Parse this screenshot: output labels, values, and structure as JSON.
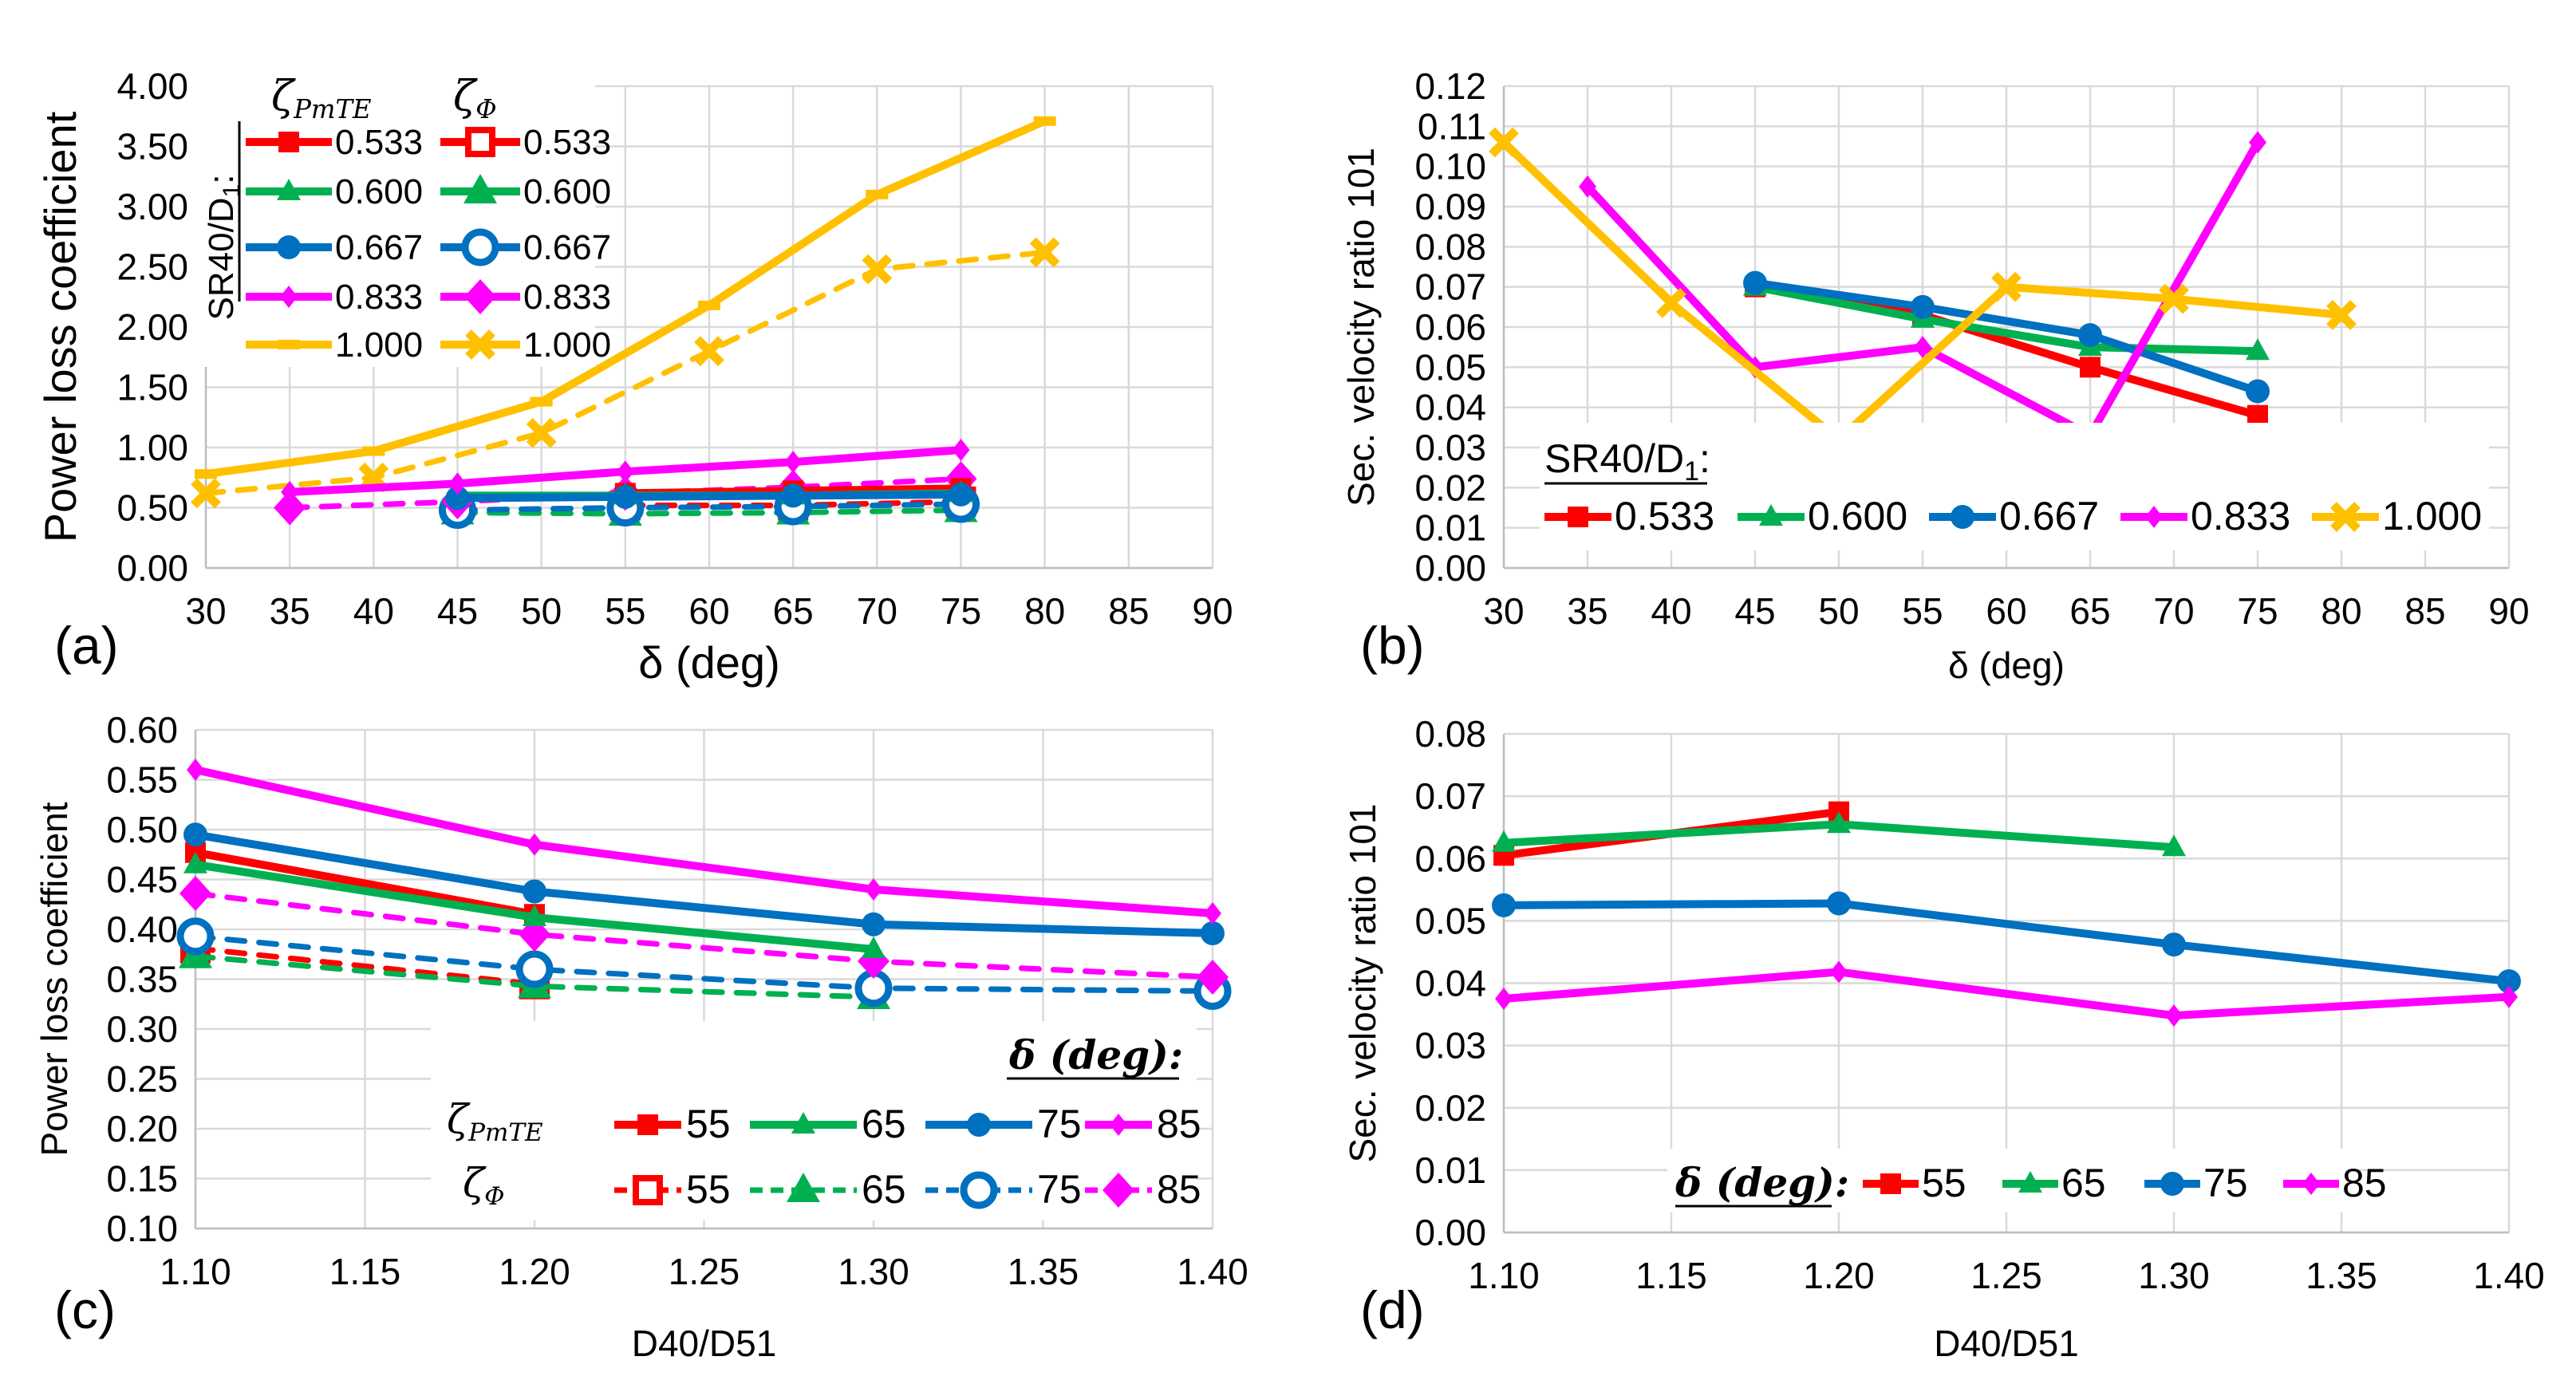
{
  "colors": {
    "s533": "#ff0000",
    "s600": "#00b050",
    "s667": "#0070c0",
    "s833": "#ff00ff",
    "s1000": "#ffc000",
    "d55": "#ff0000",
    "d65": "#00b050",
    "d75": "#0070c0",
    "d85": "#ff00ff"
  },
  "panels": {
    "a": "(a)",
    "b": "(b)",
    "c": "(c)",
    "d": "(d)"
  },
  "legend_a": {
    "title_main": "ζ",
    "title_main_sub": "PmTE",
    "title_dash": "ζ",
    "title_dash_sub": "Φ",
    "group_label": "SR40/D",
    "group_label_sub": "1",
    "group_label_end": ":",
    "entries": [
      "0.533",
      "0.600",
      "0.667",
      "0.833",
      "1.000"
    ]
  },
  "legend_b": {
    "label": "SR40/D",
    "label_sub": "1",
    "label_end": ":",
    "entries": [
      "0.533",
      "0.600",
      "0.667",
      "0.833",
      "1.000"
    ]
  },
  "legend_c": {
    "header": "δ (deg):",
    "row1_label": "ζ",
    "row1_sub": "PmTE",
    "row2_label": "ζ",
    "row2_sub": "Φ",
    "entries": [
      "55",
      "65",
      "75",
      "85"
    ]
  },
  "legend_d": {
    "header": "δ (deg):",
    "entries": [
      "55",
      "65",
      "75",
      "85"
    ]
  },
  "chart_data": [
    {
      "id": "a",
      "type": "line",
      "xlabel": "δ (deg)",
      "ylabel": "Power loss coefficient",
      "xlim": [
        30,
        90
      ],
      "ylim": [
        0,
        4
      ],
      "xticks": [
        "30",
        "35",
        "40",
        "45",
        "50",
        "55",
        "60",
        "65",
        "70",
        "75",
        "80",
        "85",
        "90"
      ],
      "yticks": [
        "0.00",
        "0.50",
        "1.00",
        "1.50",
        "2.00",
        "2.50",
        "3.00",
        "3.50",
        "4.00"
      ],
      "series": [
        {
          "name": "ζPmTE 0.533",
          "style": "solid",
          "color": "s533",
          "marker": "square",
          "x": [
            55,
            65,
            75
          ],
          "y": [
            0.62,
            0.64,
            0.66
          ]
        },
        {
          "name": "ζPmTE 0.600",
          "style": "solid",
          "color": "s600",
          "marker": "triangle",
          "x": [
            45,
            55,
            65,
            75
          ],
          "y": [
            0.6,
            0.6,
            0.6,
            0.62
          ]
        },
        {
          "name": "ζPmTE 0.667",
          "style": "solid",
          "color": "s667",
          "marker": "circle",
          "x": [
            45,
            55,
            65,
            75
          ],
          "y": [
            0.58,
            0.59,
            0.6,
            0.61
          ]
        },
        {
          "name": "ζPmTE 0.833",
          "style": "solid",
          "color": "s833",
          "marker": "diamond-small",
          "x": [
            35,
            45,
            55,
            65,
            75
          ],
          "y": [
            0.63,
            0.7,
            0.8,
            0.88,
            0.98
          ]
        },
        {
          "name": "ζPmTE 1.000",
          "style": "solid",
          "color": "s1000",
          "marker": "dash",
          "x": [
            30,
            40,
            50,
            60,
            70,
            80
          ],
          "y": [
            0.78,
            0.97,
            1.38,
            2.18,
            3.1,
            3.71
          ]
        },
        {
          "name": "ζΦ 0.533",
          "style": "dashed",
          "color": "s533",
          "marker": "open-square",
          "x": [
            55,
            65,
            75
          ],
          "y": [
            0.52,
            0.52,
            0.55
          ]
        },
        {
          "name": "ζΦ 0.600",
          "style": "dashed",
          "color": "s600",
          "marker": "big-triangle",
          "x": [
            45,
            55,
            65,
            75
          ],
          "y": [
            0.46,
            0.45,
            0.46,
            0.48
          ]
        },
        {
          "name": "ζΦ 0.667",
          "style": "dashed",
          "color": "s667",
          "marker": "open-circle",
          "x": [
            45,
            55,
            65,
            75
          ],
          "y": [
            0.48,
            0.5,
            0.51,
            0.53
          ]
        },
        {
          "name": "ζΦ 0.833",
          "style": "dashed",
          "color": "s833",
          "marker": "big-diamond",
          "x": [
            35,
            45,
            55,
            65,
            75
          ],
          "y": [
            0.5,
            0.55,
            0.62,
            0.67,
            0.74
          ]
        },
        {
          "name": "ζΦ 1.000",
          "style": "dashed",
          "color": "s1000",
          "marker": "x",
          "x": [
            30,
            40,
            50,
            60,
            70,
            80
          ],
          "y": [
            0.62,
            0.75,
            1.12,
            1.8,
            2.48,
            2.62
          ]
        }
      ]
    },
    {
      "id": "b",
      "type": "line",
      "xlabel": "δ (deg)",
      "ylabel": "Sec. velocity ratio 101",
      "xlim": [
        30,
        90
      ],
      "ylim": [
        0,
        0.12
      ],
      "xticks": [
        "30",
        "35",
        "40",
        "45",
        "50",
        "55",
        "60",
        "65",
        "70",
        "75",
        "80",
        "85",
        "90"
      ],
      "yticks": [
        "0.00",
        "0.01",
        "0.02",
        "0.03",
        "0.04",
        "0.05",
        "0.06",
        "0.07",
        "0.08",
        "0.09",
        "0.10",
        "0.11",
        "0.12"
      ],
      "series": [
        {
          "name": "0.533",
          "color": "s533",
          "marker": "square",
          "x": [
            45,
            55,
            65,
            75
          ],
          "y": [
            0.07,
            0.063,
            0.05,
            0.038
          ]
        },
        {
          "name": "0.600",
          "color": "s600",
          "marker": "triangle",
          "x": [
            45,
            55,
            65,
            75
          ],
          "y": [
            0.07,
            0.062,
            0.055,
            0.054
          ]
        },
        {
          "name": "0.667",
          "color": "s667",
          "marker": "circle",
          "x": [
            45,
            55,
            65,
            75
          ],
          "y": [
            0.071,
            0.065,
            0.058,
            0.044
          ]
        },
        {
          "name": "0.833",
          "color": "s833",
          "marker": "diamond-small",
          "x": [
            35,
            45,
            55,
            65,
            75
          ],
          "y": [
            0.095,
            0.05,
            0.055,
            0.033,
            0.106
          ]
        },
        {
          "name": "1.000",
          "color": "s1000",
          "marker": "x",
          "x": [
            30,
            40,
            50,
            60,
            70,
            80
          ],
          "y": [
            0.106,
            0.066,
            0.032,
            0.07,
            0.067,
            0.063
          ]
        }
      ]
    },
    {
      "id": "c",
      "type": "line",
      "xlabel": "D40/D51",
      "ylabel": "Power loss coefficient",
      "xlim": [
        1.1,
        1.4
      ],
      "ylim": [
        0.1,
        0.6
      ],
      "xticks": [
        "1.10",
        "1.15",
        "1.20",
        "1.25",
        "1.30",
        "1.35",
        "1.40"
      ],
      "yticks": [
        "0.10",
        "0.15",
        "0.20",
        "0.25",
        "0.30",
        "0.35",
        "0.40",
        "0.45",
        "0.50",
        "0.55",
        "0.60"
      ],
      "series": [
        {
          "name": "ζPmTE 55",
          "style": "solid",
          "color": "d55",
          "marker": "square",
          "x": [
            1.1,
            1.2
          ],
          "y": [
            0.477,
            0.415
          ]
        },
        {
          "name": "ζPmTE 65",
          "style": "solid",
          "color": "d65",
          "marker": "triangle",
          "x": [
            1.1,
            1.2,
            1.3
          ],
          "y": [
            0.465,
            0.412,
            0.38
          ]
        },
        {
          "name": "ζPmTE 75",
          "style": "solid",
          "color": "d75",
          "marker": "circle",
          "x": [
            1.1,
            1.2,
            1.3,
            1.4
          ],
          "y": [
            0.495,
            0.438,
            0.405,
            0.396
          ]
        },
        {
          "name": "ζPmTE 85",
          "style": "solid",
          "color": "d85",
          "marker": "diamond-small",
          "x": [
            1.1,
            1.2,
            1.3,
            1.4
          ],
          "y": [
            0.56,
            0.485,
            0.44,
            0.416
          ]
        },
        {
          "name": "ζΦ 55",
          "style": "dashed",
          "color": "d55",
          "marker": "open-square",
          "x": [
            1.1,
            1.2
          ],
          "y": [
            0.381,
            0.345
          ]
        },
        {
          "name": "ζΦ 65",
          "style": "dashed",
          "color": "d65",
          "marker": "big-triangle",
          "x": [
            1.1,
            1.2,
            1.3
          ],
          "y": [
            0.373,
            0.343,
            0.332
          ]
        },
        {
          "name": "ζΦ 75",
          "style": "dashed",
          "color": "d75",
          "marker": "open-circle",
          "x": [
            1.1,
            1.2,
            1.3,
            1.4
          ],
          "y": [
            0.393,
            0.36,
            0.341,
            0.338
          ]
        },
        {
          "name": "ζΦ 85",
          "style": "dashed",
          "color": "d85",
          "marker": "big-diamond",
          "x": [
            1.1,
            1.2,
            1.3,
            1.4
          ],
          "y": [
            0.436,
            0.395,
            0.368,
            0.352
          ]
        }
      ]
    },
    {
      "id": "d",
      "type": "line",
      "xlabel": "D40/D51",
      "ylabel": "Sec. velocity ratio 101",
      "xlim": [
        1.1,
        1.4
      ],
      "ylim": [
        0,
        0.08
      ],
      "xticks": [
        "1.10",
        "1.15",
        "1.20",
        "1.25",
        "1.30",
        "1.35",
        "1.40"
      ],
      "yticks": [
        "0.00",
        "0.01",
        "0.02",
        "0.03",
        "0.04",
        "0.05",
        "0.06",
        "0.07",
        "0.08"
      ],
      "series": [
        {
          "name": "55",
          "color": "d55",
          "marker": "square",
          "x": [
            1.1,
            1.2
          ],
          "y": [
            0.0605,
            0.0675
          ]
        },
        {
          "name": "65",
          "color": "d65",
          "marker": "triangle",
          "x": [
            1.1,
            1.2,
            1.3
          ],
          "y": [
            0.0625,
            0.0655,
            0.0618
          ]
        },
        {
          "name": "75",
          "color": "d75",
          "marker": "circle",
          "x": [
            1.1,
            1.2,
            1.3,
            1.4
          ],
          "y": [
            0.0525,
            0.0528,
            0.0462,
            0.0403
          ]
        },
        {
          "name": "85",
          "color": "d85",
          "marker": "diamond-small",
          "x": [
            1.1,
            1.2,
            1.3,
            1.4
          ],
          "y": [
            0.0375,
            0.0418,
            0.0348,
            0.0378
          ]
        }
      ]
    }
  ]
}
